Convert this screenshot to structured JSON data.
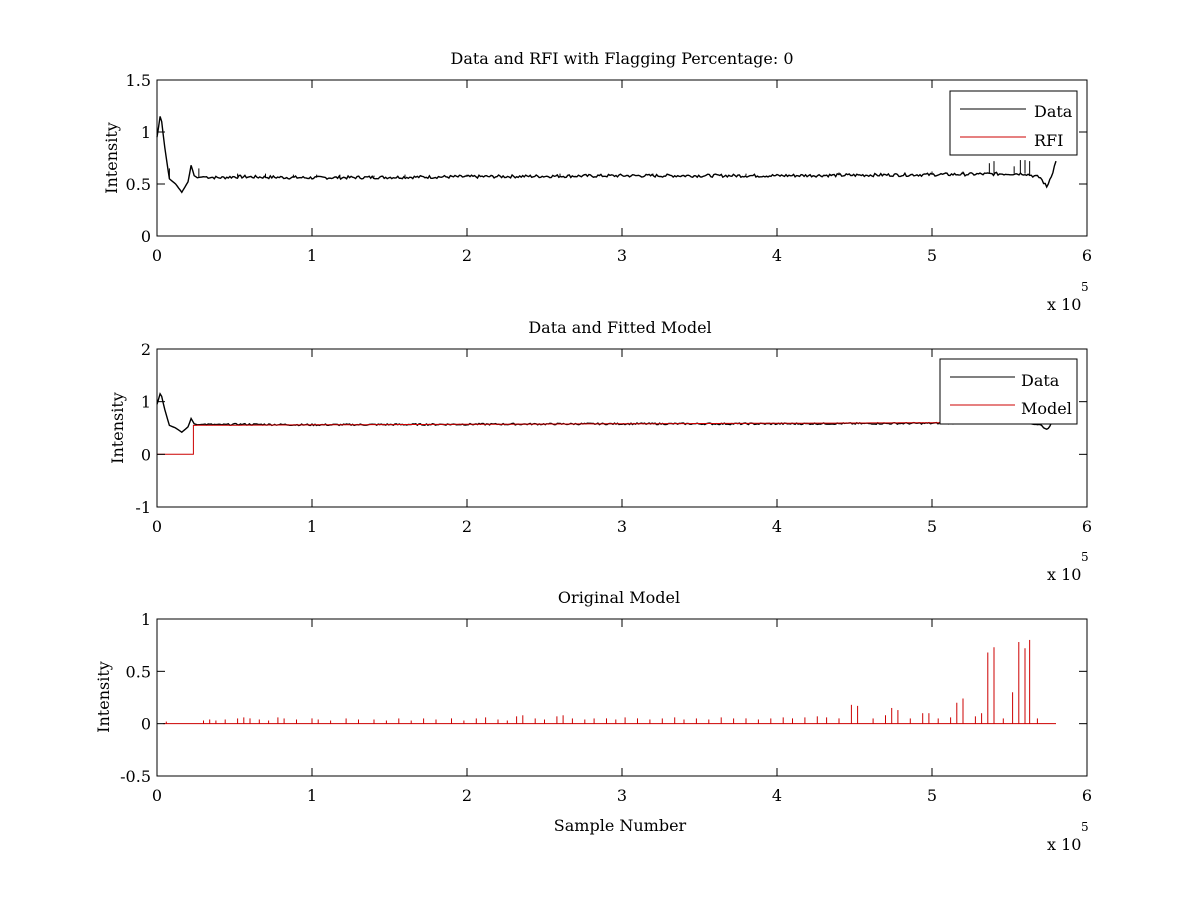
{
  "colors": {
    "data": "#000000",
    "red": "#cc0000",
    "axes": "#000000",
    "background": "#ffffff"
  },
  "chart_data": [
    {
      "type": "line",
      "title": "Data and RFI with Flagging Percentage: 0",
      "xlabel": "",
      "ylabel": "Intensity",
      "xlim": [
        0,
        600000
      ],
      "ylim": [
        0,
        1.5
      ],
      "xticks": [
        0,
        1,
        2,
        3,
        4,
        5,
        6
      ],
      "yticks": [
        "0",
        "0.5",
        "1",
        "1.5"
      ],
      "x_multiplier": "x 10",
      "x_multiplier_exp": "5",
      "legend_position": "top-right",
      "grid": false,
      "series": [
        {
          "name": "Data",
          "color": "#000000",
          "x": [
            0,
            2000,
            3000,
            5000,
            8000,
            12000,
            16000,
            20000,
            22000,
            24000,
            26000,
            30000,
            40000,
            50000,
            100000,
            200000,
            300000,
            400000,
            500000,
            560000,
            570000,
            574000,
            578000,
            580000
          ],
          "y": [
            0.95,
            1.15,
            1.1,
            0.85,
            0.55,
            0.5,
            0.42,
            0.52,
            0.68,
            0.58,
            0.56,
            0.57,
            0.56,
            0.57,
            0.56,
            0.57,
            0.58,
            0.58,
            0.59,
            0.6,
            0.56,
            0.47,
            0.62,
            0.72
          ],
          "spikes": [
            [
              8000,
              0.65
            ],
            [
              27000,
              0.65
            ],
            [
              52000,
              0.6
            ],
            [
              70000,
              0.6
            ],
            [
              88000,
              0.59
            ],
            [
              103000,
              0.59
            ],
            [
              118000,
              0.59
            ],
            [
              140000,
              0.58
            ],
            [
              160000,
              0.59
            ],
            [
              200000,
              0.59
            ],
            [
              260000,
              0.6
            ],
            [
              320000,
              0.6
            ],
            [
              380000,
              0.6
            ],
            [
              440000,
              0.61
            ],
            [
              500000,
              0.62
            ],
            [
              520000,
              0.62
            ],
            [
              537000,
              0.7
            ],
            [
              540000,
              0.72
            ],
            [
              553000,
              0.67
            ],
            [
              557000,
              0.73
            ],
            [
              560000,
              0.73
            ],
            [
              563000,
              0.72
            ]
          ]
        },
        {
          "name": "RFI",
          "color": "#cc0000",
          "x": [],
          "y": []
        }
      ]
    },
    {
      "type": "line",
      "title": "Data and Fitted Model",
      "xlabel": "",
      "ylabel": "Intensity",
      "xlim": [
        0,
        600000
      ],
      "ylim": [
        -1,
        2
      ],
      "xticks": [
        0,
        1,
        2,
        3,
        4,
        5,
        6
      ],
      "yticks": [
        "-1",
        "0",
        "1",
        "2"
      ],
      "x_multiplier": "x 10",
      "x_multiplier_exp": "5",
      "legend_position": "top-right",
      "grid": false,
      "series": [
        {
          "name": "Data",
          "color": "#000000",
          "x": [
            0,
            2000,
            3000,
            5000,
            8000,
            12000,
            16000,
            20000,
            22000,
            24000,
            26000,
            30000,
            40000,
            50000,
            100000,
            200000,
            300000,
            400000,
            500000,
            560000,
            570000,
            574000,
            578000,
            580000
          ],
          "y": [
            0.95,
            1.15,
            1.1,
            0.85,
            0.55,
            0.5,
            0.42,
            0.52,
            0.68,
            0.58,
            0.56,
            0.57,
            0.56,
            0.57,
            0.56,
            0.57,
            0.58,
            0.58,
            0.59,
            0.6,
            0.56,
            0.47,
            0.62,
            0.72
          ]
        },
        {
          "name": "Model",
          "color": "#cc0000",
          "x": [
            0,
            23500,
            23500,
            100000,
            200000,
            300000,
            400000,
            500000,
            580000
          ],
          "y": [
            0,
            0,
            0.55,
            0.56,
            0.57,
            0.58,
            0.59,
            0.6,
            0.6
          ]
        }
      ]
    },
    {
      "type": "line",
      "title": "Original Model",
      "xlabel": "Sample Number",
      "ylabel": "Intensity",
      "xlim": [
        0,
        600000
      ],
      "ylim": [
        -0.5,
        1
      ],
      "xticks": [
        0,
        1,
        2,
        3,
        4,
        5,
        6
      ],
      "yticks": [
        "-0.5",
        "0",
        "0.5",
        "1"
      ],
      "x_multiplier": "x 10",
      "x_multiplier_exp": "5",
      "legend_position": "none",
      "grid": false,
      "series": [
        {
          "name": "",
          "color": "#cc0000",
          "baseline": 0,
          "x_range": [
            4000,
            580000
          ],
          "spikes": [
            [
              6000,
              0.02
            ],
            [
              30000,
              0.03
            ],
            [
              34000,
              0.04
            ],
            [
              38000,
              0.03
            ],
            [
              44000,
              0.04
            ],
            [
              52000,
              0.05
            ],
            [
              56000,
              0.06
            ],
            [
              60000,
              0.05
            ],
            [
              66000,
              0.04
            ],
            [
              72000,
              0.03
            ],
            [
              78000,
              0.06
            ],
            [
              82000,
              0.05
            ],
            [
              90000,
              0.04
            ],
            [
              100000,
              0.05
            ],
            [
              104000,
              0.04
            ],
            [
              112000,
              0.03
            ],
            [
              122000,
              0.05
            ],
            [
              130000,
              0.04
            ],
            [
              140000,
              0.04
            ],
            [
              148000,
              0.03
            ],
            [
              156000,
              0.05
            ],
            [
              164000,
              0.03
            ],
            [
              172000,
              0.05
            ],
            [
              180000,
              0.04
            ],
            [
              190000,
              0.05
            ],
            [
              198000,
              0.03
            ],
            [
              206000,
              0.05
            ],
            [
              212000,
              0.06
            ],
            [
              220000,
              0.04
            ],
            [
              226000,
              0.03
            ],
            [
              232000,
              0.07
            ],
            [
              236000,
              0.08
            ],
            [
              244000,
              0.05
            ],
            [
              250000,
              0.04
            ],
            [
              258000,
              0.07
            ],
            [
              262000,
              0.08
            ],
            [
              268000,
              0.05
            ],
            [
              276000,
              0.04
            ],
            [
              282000,
              0.05
            ],
            [
              290000,
              0.05
            ],
            [
              296000,
              0.04
            ],
            [
              302000,
              0.06
            ],
            [
              310000,
              0.05
            ],
            [
              318000,
              0.04
            ],
            [
              326000,
              0.05
            ],
            [
              334000,
              0.06
            ],
            [
              340000,
              0.04
            ],
            [
              348000,
              0.05
            ],
            [
              356000,
              0.04
            ],
            [
              364000,
              0.06
            ],
            [
              372000,
              0.05
            ],
            [
              380000,
              0.05
            ],
            [
              388000,
              0.04
            ],
            [
              396000,
              0.05
            ],
            [
              404000,
              0.06
            ],
            [
              410000,
              0.05
            ],
            [
              418000,
              0.06
            ],
            [
              426000,
              0.07
            ],
            [
              432000,
              0.06
            ],
            [
              440000,
              0.05
            ],
            [
              448000,
              0.18
            ],
            [
              452000,
              0.17
            ],
            [
              462000,
              0.05
            ],
            [
              470000,
              0.08
            ],
            [
              474000,
              0.15
            ],
            [
              478000,
              0.13
            ],
            [
              486000,
              0.05
            ],
            [
              494000,
              0.1
            ],
            [
              498000,
              0.1
            ],
            [
              504000,
              0.05
            ],
            [
              512000,
              0.06
            ],
            [
              516000,
              0.2
            ],
            [
              520000,
              0.24
            ],
            [
              528000,
              0.07
            ],
            [
              532000,
              0.1
            ],
            [
              536000,
              0.68
            ],
            [
              540000,
              0.73
            ],
            [
              546000,
              0.05
            ],
            [
              552000,
              0.3
            ],
            [
              556000,
              0.78
            ],
            [
              560000,
              0.72
            ],
            [
              563000,
              0.8
            ],
            [
              568000,
              0.05
            ]
          ]
        }
      ]
    }
  ]
}
